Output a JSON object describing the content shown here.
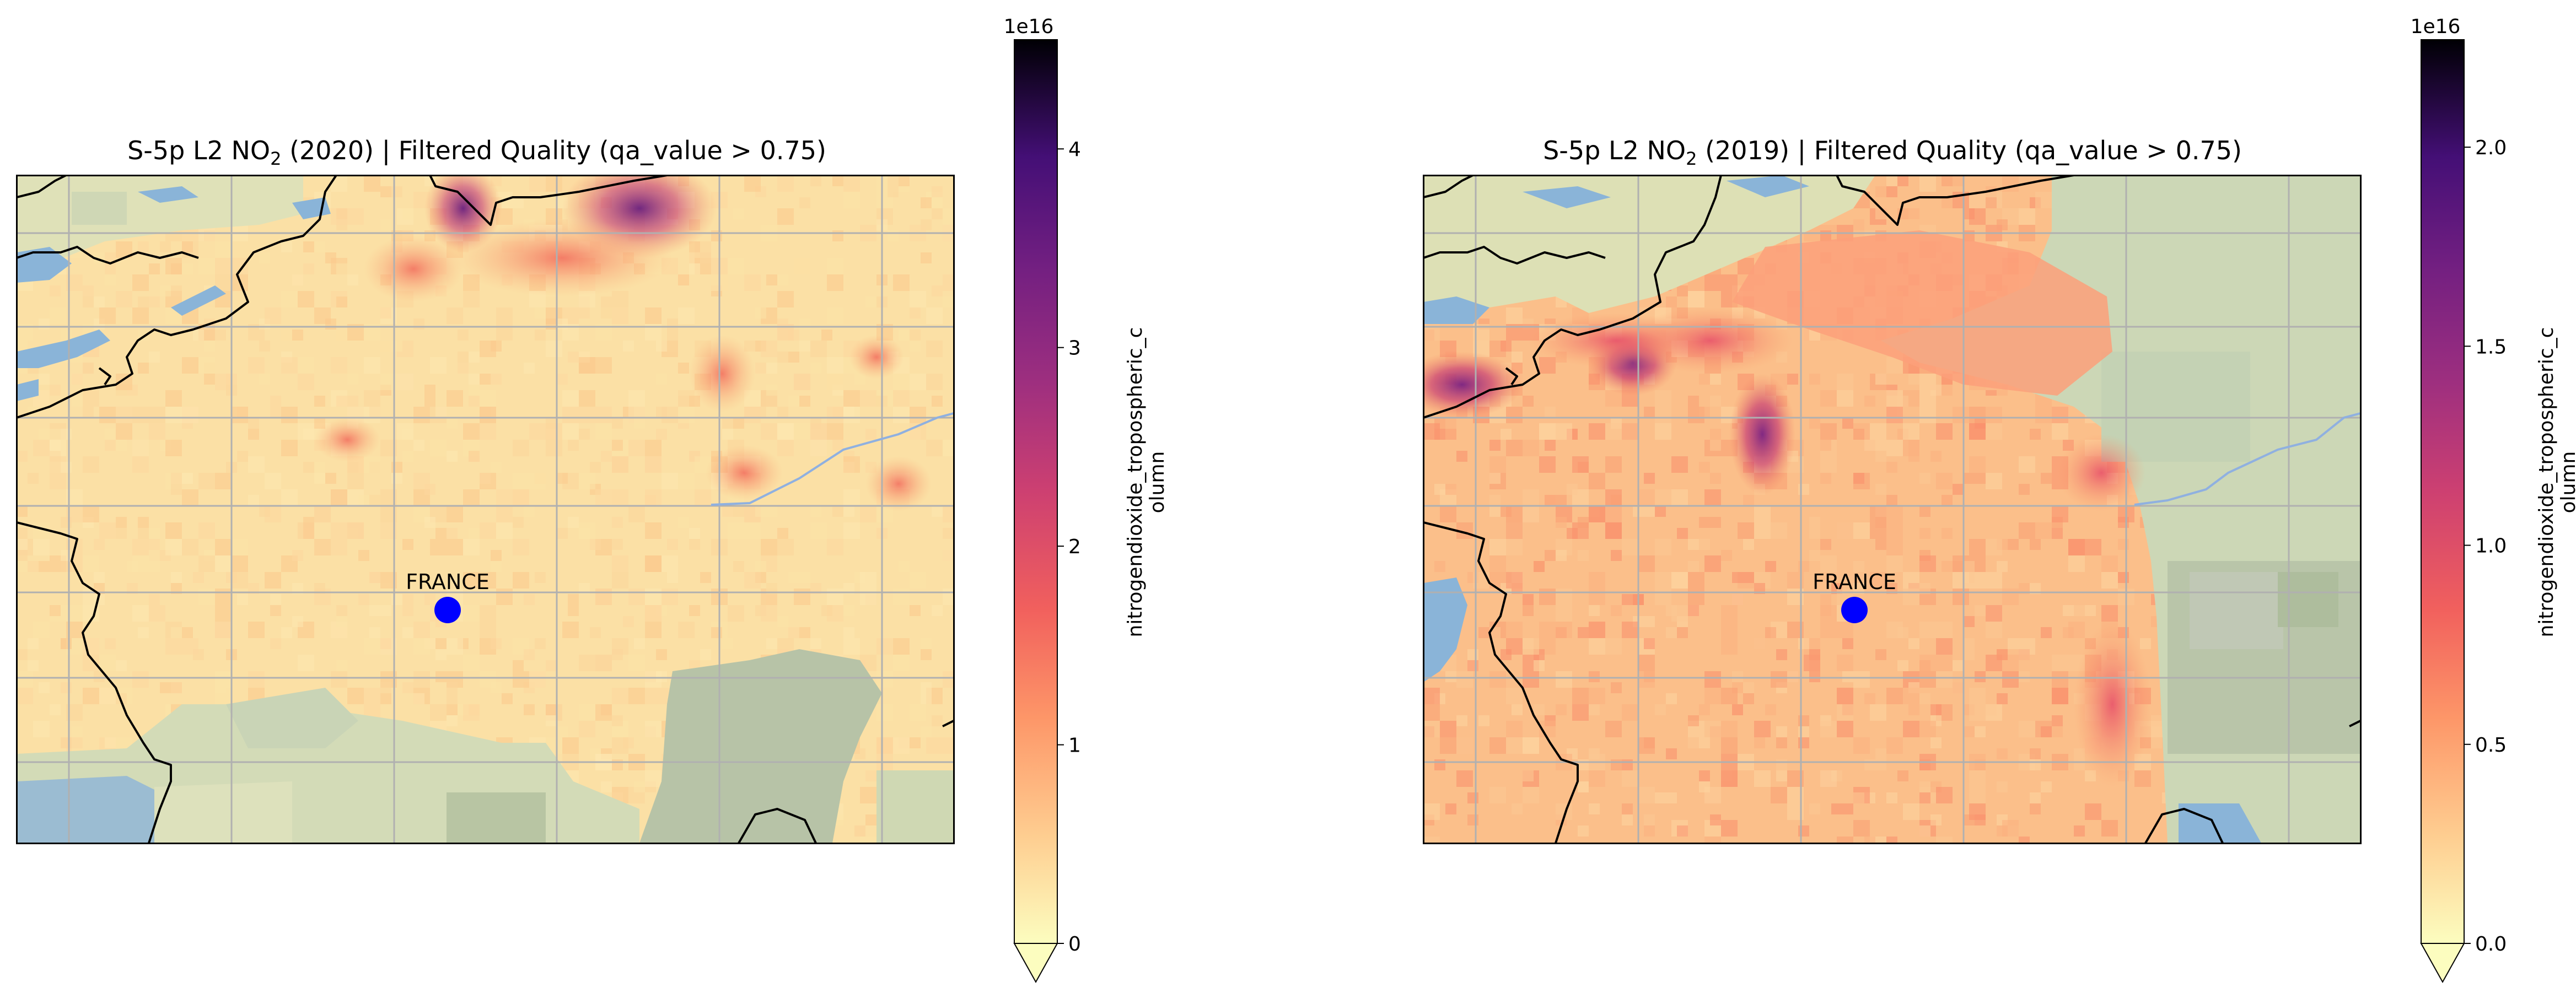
{
  "maps": [
    {
      "id": "left",
      "title_prefix": "S-5p L2 NO",
      "title_sub": "2",
      "title_suffix": " (2020) | Filtered Quality (qa_value > 0.75)",
      "marker_label": "FRANCE",
      "marker_color": "#0000ff",
      "colorbar": {
        "offset_text": "1e16",
        "ticks": [
          "0",
          "1",
          "2",
          "3",
          "4"
        ],
        "tick_values": [
          0,
          1,
          2,
          3,
          4
        ],
        "vmax": 4.55,
        "label_line1": "nitrogendioxide_tropospheric_c",
        "label_line2": "olumn",
        "extend": "min"
      }
    },
    {
      "id": "right",
      "title_prefix": "S-5p L2 NO",
      "title_sub": "2",
      "title_suffix": " (2019) | Filtered Quality (qa_value > 0.75)",
      "marker_label": "FRANCE",
      "marker_color": "#0000ff",
      "colorbar": {
        "offset_text": "1e16",
        "ticks": [
          "0.0",
          "0.5",
          "1.0",
          "1.5",
          "2.0"
        ],
        "tick_values": [
          0,
          0.5,
          1.0,
          1.5,
          2.0
        ],
        "vmax": 2.27,
        "label_line1": "nitrogendioxide_tropospheric_c",
        "label_line2": "olumn",
        "extend": "min"
      }
    }
  ],
  "colormap": "magma_r",
  "colors": {
    "water": "#8ab4d8",
    "no_data_land": "#c8d3b4",
    "low_no2": "#fbe3a6",
    "gridline": "#b0b0b0",
    "coastline": "#000000",
    "river": "#8fb0e0"
  }
}
